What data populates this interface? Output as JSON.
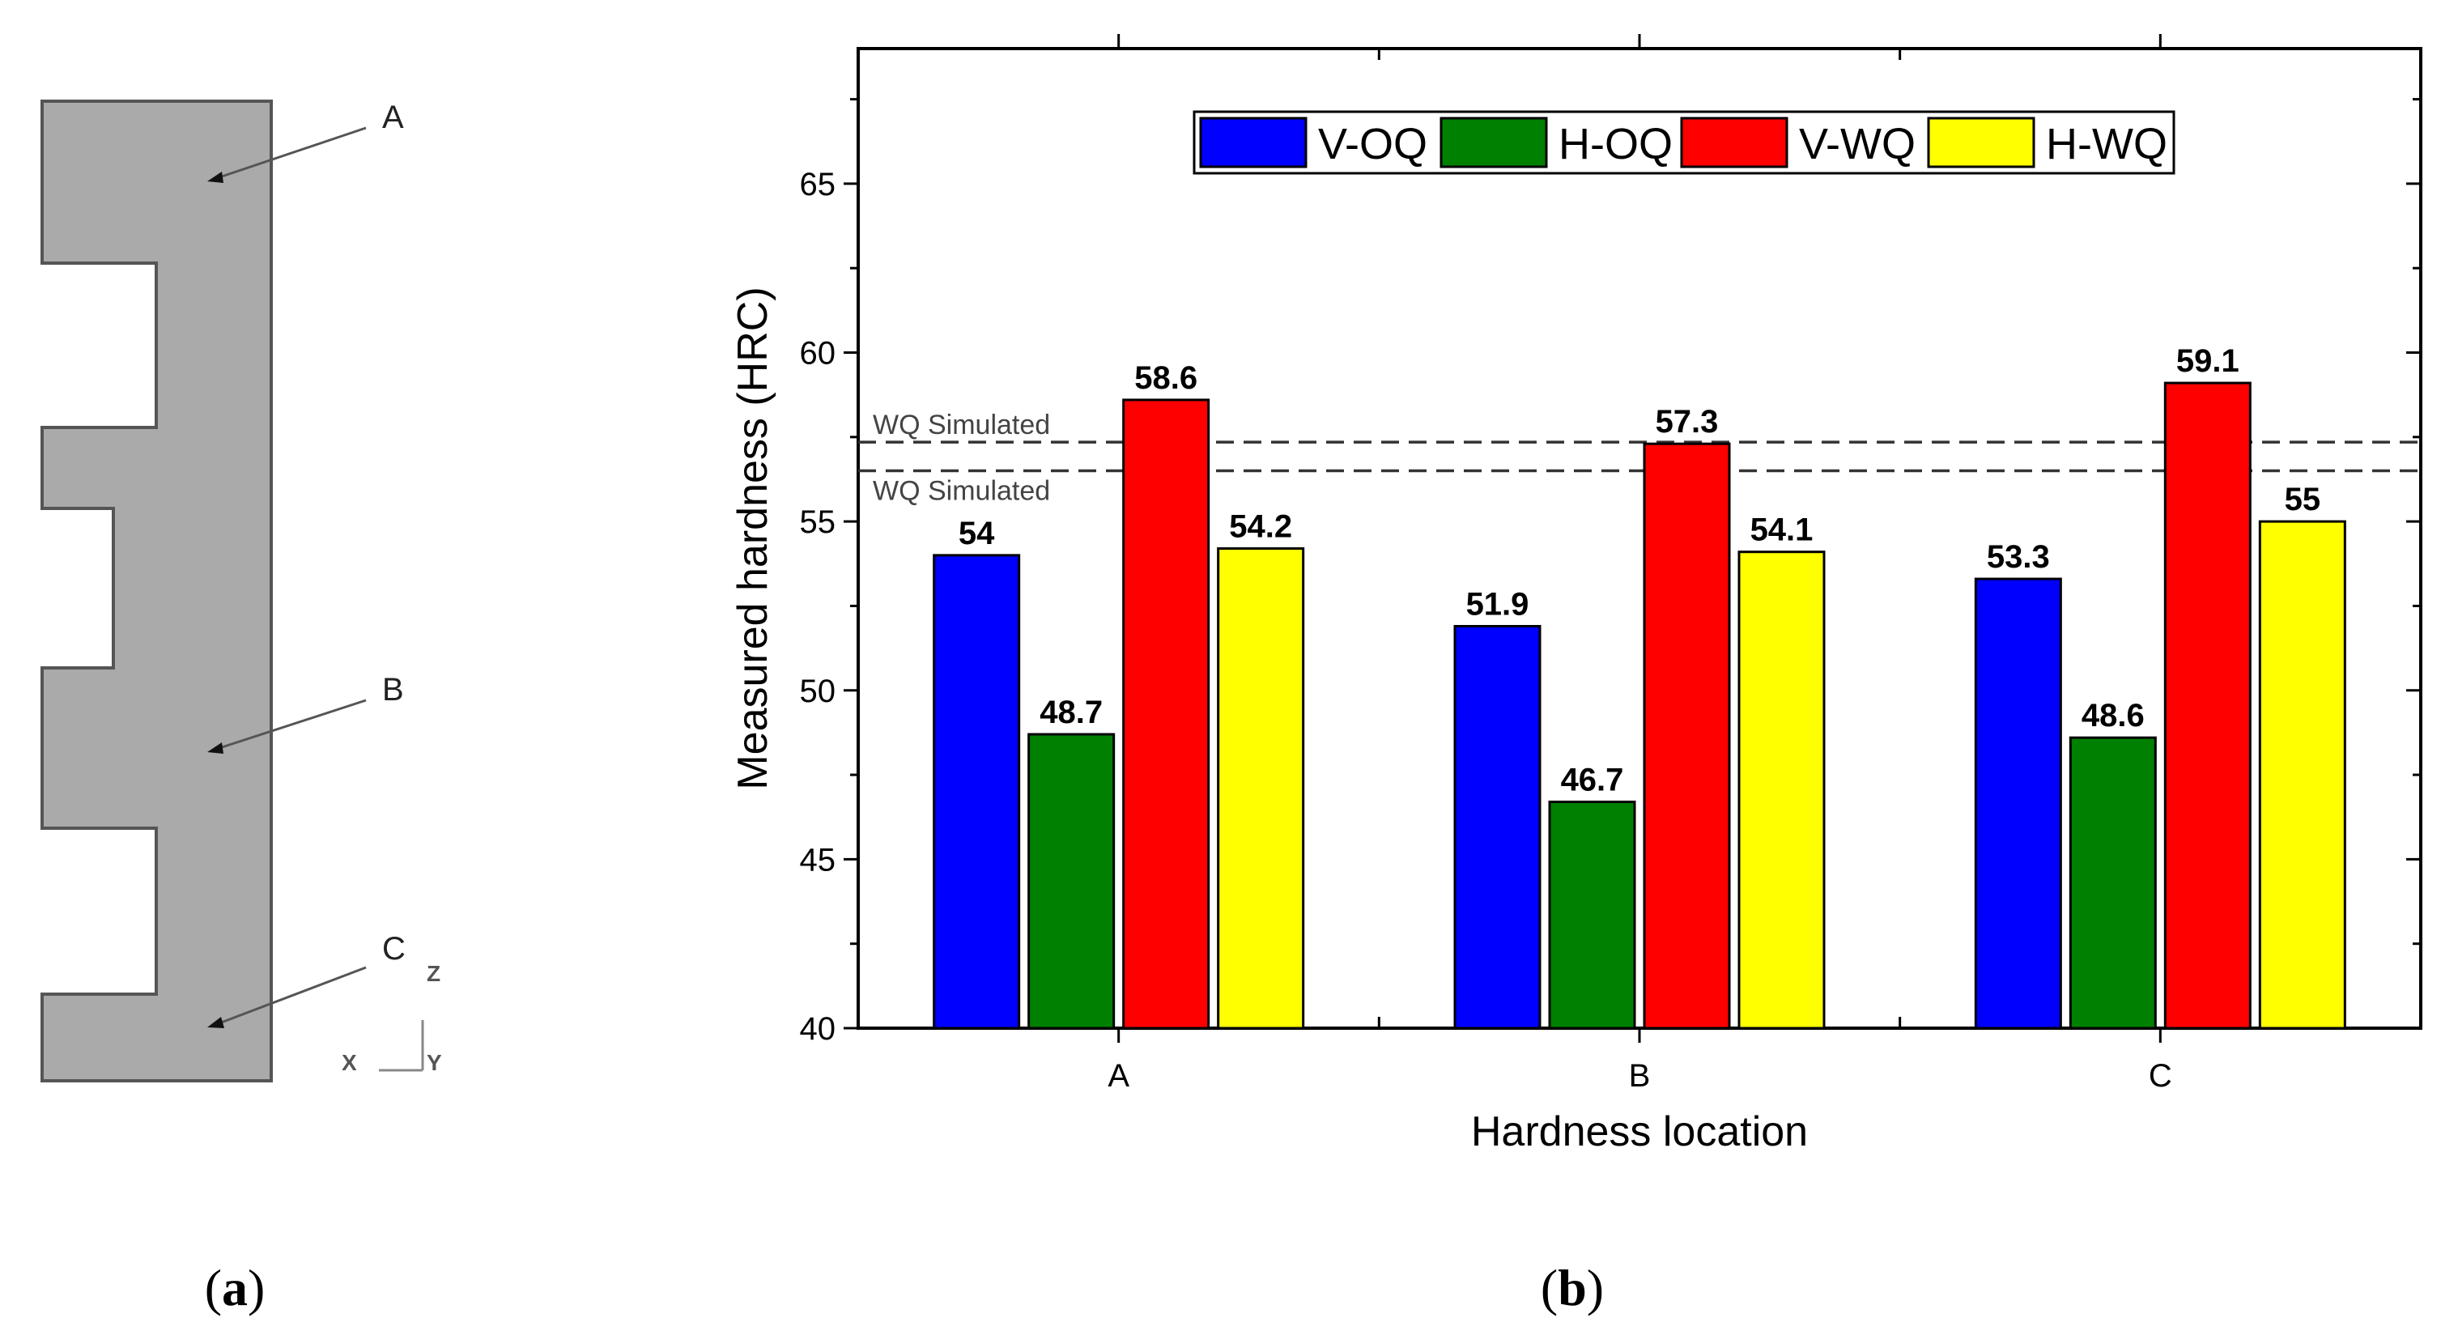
{
  "diagram": {
    "labels": [
      "A",
      "B",
      "C"
    ],
    "axes": {
      "z": "Z",
      "x": "X",
      "y": "Y"
    },
    "caption_open": "(",
    "caption_letter": "a",
    "caption_close": ")"
  },
  "chart_caption": {
    "open": "(",
    "letter": "b",
    "close": ")"
  },
  "chart_data": {
    "type": "bar",
    "title": "",
    "xlabel": "Hardness location",
    "ylabel": "Measured hardness (HRC)",
    "ylim": [
      40,
      69
    ],
    "yticks": [
      40,
      45,
      50,
      55,
      60,
      65
    ],
    "categories": [
      "A",
      "B",
      "C"
    ],
    "series": [
      {
        "name": "V-OQ",
        "color": "#0000ff",
        "values": [
          54,
          51.9,
          53.3
        ]
      },
      {
        "name": "H-OQ",
        "color": "#008000",
        "values": [
          48.7,
          46.7,
          48.6
        ]
      },
      {
        "name": "V-WQ",
        "color": "#ff0000",
        "values": [
          58.6,
          57.3,
          59.1
        ]
      },
      {
        "name": "H-WQ",
        "color": "#ffff00",
        "values": [
          54.2,
          54.1,
          55
        ]
      }
    ],
    "data_labels": [
      [
        "54",
        "51.9",
        "53.3"
      ],
      [
        "48.7",
        "46.7",
        "48.6"
      ],
      [
        "58.6",
        "57.3",
        "59.1"
      ],
      [
        "54.2",
        "54.1",
        "55"
      ]
    ],
    "reference_lines": [
      {
        "label": "WQ Simulated",
        "value": 57.35
      },
      {
        "label": "WQ Simulated",
        "value": 56.5
      }
    ],
    "legend_position": "top-center",
    "grid": false
  }
}
